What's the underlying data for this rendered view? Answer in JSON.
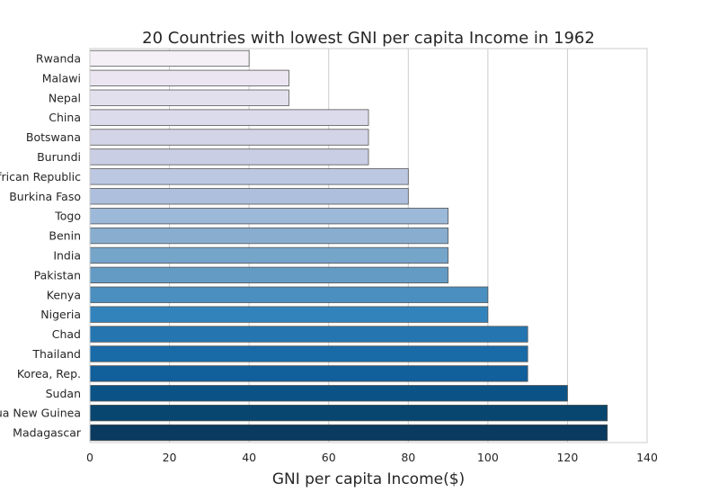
{
  "chart_data": {
    "type": "bar",
    "orientation": "horizontal",
    "title": "20 Countries with lowest GNI per capita Income in 1962",
    "xlabel": "GNI per capita Income($)",
    "ylabel": "",
    "xlim": [
      0,
      140
    ],
    "xticks": [
      0,
      20,
      40,
      60,
      80,
      100,
      120,
      140
    ],
    "grid": true,
    "categories": [
      "Rwanda",
      "Malawi",
      "Nepal",
      "China",
      "Botswana",
      "Burundi",
      "Central African Republic",
      "Burkina Faso",
      "Togo",
      "Benin",
      "India",
      "Pakistan",
      "Kenya",
      "Nigeria",
      "Chad",
      "Thailand",
      "Korea, Rep.",
      "Sudan",
      "Papua New Guinea",
      "Madagascar"
    ],
    "values": [
      40,
      50,
      50,
      70,
      70,
      70,
      80,
      80,
      90,
      90,
      90,
      90,
      100,
      100,
      110,
      110,
      110,
      120,
      130,
      130
    ],
    "colors": [
      "#f5eff6",
      "#ebe5f1",
      "#e3e0ee",
      "#dbdbeb",
      "#d3d4e7",
      "#c9cee4",
      "#bcc7e1",
      "#aebfdd",
      "#9cb9d9",
      "#88adcf",
      "#76a5ca",
      "#649bc4",
      "#4a8fbf",
      "#3283bb",
      "#2576b0",
      "#196ba8",
      "#115f9b",
      "#0b5386",
      "#09466f",
      "#0a3a5f"
    ]
  }
}
